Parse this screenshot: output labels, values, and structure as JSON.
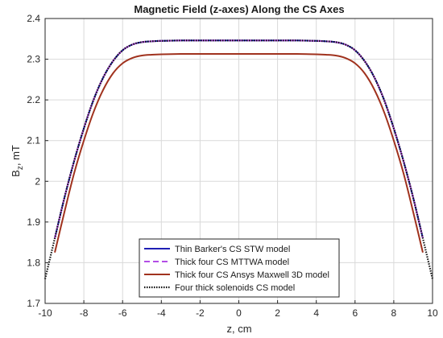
{
  "chart_data": {
    "type": "line",
    "title": "Magnetic Field (z-axes) Along the CS Axes",
    "xlabel": "z, cm",
    "ylabel": "B_z, mT",
    "ylabel_main": "B",
    "ylabel_sub": "z",
    "ylabel_rest": ", mT",
    "xlim": [
      -10,
      10
    ],
    "ylim": [
      1.7,
      2.4
    ],
    "xticks": [
      -10,
      -8,
      -6,
      -4,
      -2,
      0,
      2,
      4,
      6,
      8,
      10
    ],
    "yticks": [
      1.7,
      1.8,
      1.9,
      2.0,
      2.1,
      2.2,
      2.3,
      2.4
    ],
    "xtick_labels": [
      "-10",
      "-8",
      "-6",
      "-4",
      "-2",
      "0",
      "2",
      "4",
      "6",
      "8",
      "10"
    ],
    "ytick_labels": [
      "1.7",
      "1.8",
      "1.9",
      "2",
      "2.1",
      "2.2",
      "2.3",
      "2.4"
    ],
    "grid": true,
    "legend_position": "bottom-center",
    "series": [
      {
        "name": "Thin Barker's CS STW model",
        "color": "#1f1fb4",
        "style": "solid",
        "x": [
          -9.5,
          -9.0,
          -8.5,
          -8.0,
          -7.5,
          -7.0,
          -6.5,
          -6.0,
          -5.5,
          -5.0,
          -4.5,
          -4.0,
          -3.0,
          -2.0,
          0.0,
          2.0,
          3.0,
          4.0,
          4.5,
          5.0,
          5.5,
          6.0,
          6.5,
          7.0,
          7.5,
          8.0,
          8.5,
          9.0,
          9.5
        ],
        "y": [
          1.86,
          1.96,
          2.05,
          2.13,
          2.2,
          2.255,
          2.295,
          2.322,
          2.336,
          2.342,
          2.344,
          2.345,
          2.346,
          2.346,
          2.346,
          2.346,
          2.346,
          2.345,
          2.344,
          2.342,
          2.336,
          2.322,
          2.295,
          2.255,
          2.2,
          2.13,
          2.05,
          1.96,
          1.86
        ]
      },
      {
        "name": "Thick four CS MTTWA model",
        "color": "#b34de6",
        "style": "dashed",
        "x": [
          -9.5,
          -9.0,
          -8.5,
          -8.0,
          -7.5,
          -7.0,
          -6.5,
          -6.0,
          -5.5,
          -5.0,
          -4.5,
          -4.0,
          -3.0,
          -2.0,
          0.0,
          2.0,
          3.0,
          4.0,
          4.5,
          5.0,
          5.5,
          6.0,
          6.5,
          7.0,
          7.5,
          8.0,
          8.5,
          9.0,
          9.5
        ],
        "y": [
          1.86,
          1.96,
          2.05,
          2.13,
          2.2,
          2.255,
          2.295,
          2.322,
          2.336,
          2.342,
          2.344,
          2.345,
          2.346,
          2.346,
          2.346,
          2.346,
          2.346,
          2.345,
          2.344,
          2.342,
          2.336,
          2.322,
          2.295,
          2.255,
          2.2,
          2.13,
          2.05,
          1.96,
          1.86
        ]
      },
      {
        "name": "Thick four CS Ansys Maxwell 3D model",
        "color": "#a0321e",
        "style": "solid",
        "x": [
          -9.5,
          -9.0,
          -8.5,
          -8.0,
          -7.5,
          -7.0,
          -6.5,
          -6.0,
          -5.5,
          -5.0,
          -4.5,
          -4.0,
          -3.0,
          -2.0,
          0.0,
          2.0,
          3.0,
          4.0,
          4.5,
          5.0,
          5.5,
          6.0,
          6.5,
          7.0,
          7.5,
          8.0,
          8.5,
          9.0,
          9.5
        ],
        "y": [
          1.825,
          1.925,
          2.02,
          2.1,
          2.17,
          2.225,
          2.265,
          2.29,
          2.303,
          2.309,
          2.311,
          2.312,
          2.313,
          2.313,
          2.313,
          2.313,
          2.313,
          2.312,
          2.311,
          2.309,
          2.303,
          2.29,
          2.265,
          2.225,
          2.17,
          2.1,
          2.02,
          1.925,
          1.825
        ]
      },
      {
        "name": "Four thick solenoids CS model",
        "color": "#111111",
        "style": "dotted",
        "x": [
          -10.0,
          -9.5,
          -9.0,
          -8.5,
          -8.0,
          -7.5,
          -7.0,
          -6.5,
          -6.0,
          -5.5,
          -5.0,
          -4.5,
          -4.0,
          -3.0,
          -2.0,
          0.0,
          2.0,
          3.0,
          4.0,
          4.5,
          5.0,
          5.5,
          6.0,
          6.5,
          7.0,
          7.5,
          8.0,
          8.5,
          9.0,
          9.5,
          10.0
        ],
        "y": [
          1.76,
          1.86,
          1.96,
          2.05,
          2.13,
          2.2,
          2.255,
          2.295,
          2.322,
          2.336,
          2.342,
          2.344,
          2.345,
          2.346,
          2.346,
          2.346,
          2.346,
          2.346,
          2.345,
          2.344,
          2.342,
          2.336,
          2.322,
          2.295,
          2.255,
          2.2,
          2.13,
          2.05,
          1.96,
          1.86,
          1.76
        ]
      }
    ]
  }
}
